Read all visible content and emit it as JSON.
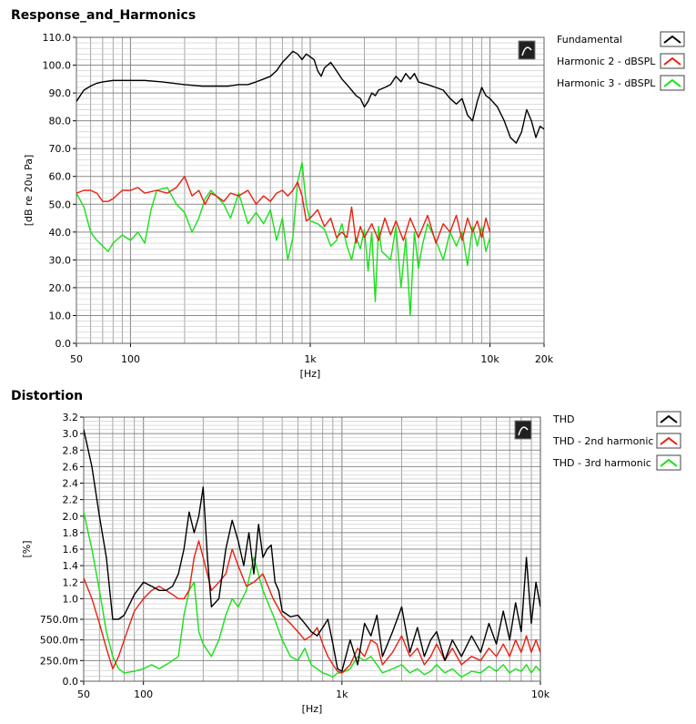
{
  "chart_data": [
    {
      "type": "line",
      "title": "Response_and_Harmonics",
      "xlabel": "[Hz]",
      "ylabel": "[dB re 20u Pa]",
      "xscale": "log",
      "xlim": [
        50,
        20000
      ],
      "ylim": [
        0,
        110
      ],
      "grid": true,
      "legend_position": "right",
      "xticks": [
        "50",
        "100",
        "1k",
        "10k",
        "20k"
      ],
      "yticks": [
        "0.0",
        "10.0",
        "20.0",
        "30.0",
        "40.0",
        "50.0",
        "60.0",
        "70.0",
        "80.0",
        "90.0",
        "100.0",
        "110.0"
      ],
      "series": [
        {
          "name": "Fundamental",
          "color": "#000000",
          "x": [
            50,
            55,
            60,
            65,
            70,
            80,
            90,
            100,
            120,
            150,
            200,
            250,
            300,
            350,
            400,
            450,
            500,
            550,
            600,
            650,
            700,
            750,
            800,
            850,
            900,
            950,
            1000,
            1050,
            1100,
            1150,
            1200,
            1300,
            1400,
            1500,
            1600,
            1700,
            1800,
            1900,
            2000,
            2100,
            2200,
            2300,
            2400,
            2600,
            2800,
            3000,
            3200,
            3400,
            3600,
            3800,
            4000,
            4500,
            5000,
            5500,
            6000,
            6500,
            7000,
            7500,
            8000,
            8500,
            9000,
            9500,
            10000,
            11000,
            12000,
            13000,
            14000,
            15000,
            16000,
            17000,
            18000,
            19000,
            20000
          ],
          "y": [
            87,
            91,
            92.5,
            93.5,
            94,
            94.5,
            94.5,
            94.5,
            94.5,
            94,
            93,
            92.5,
            92.5,
            92.5,
            93,
            93,
            94,
            95,
            96,
            98,
            101,
            103,
            105,
            104,
            102,
            104,
            103,
            102,
            98,
            96,
            99,
            101,
            98,
            95,
            93,
            91,
            89,
            88,
            85,
            87,
            90,
            89,
            91,
            92,
            93,
            96,
            94,
            97,
            95,
            97,
            94,
            93,
            92,
            91,
            88,
            86,
            88,
            82,
            80,
            87,
            92,
            89,
            88,
            85,
            80,
            74,
            72,
            76,
            84,
            80,
            74,
            78,
            77
          ]
        },
        {
          "name": "Harmonic 2 - dBSPL",
          "color": "#e82010",
          "x": [
            50,
            55,
            60,
            65,
            70,
            75,
            80,
            90,
            100,
            110,
            120,
            140,
            160,
            180,
            200,
            220,
            240,
            260,
            280,
            300,
            330,
            360,
            400,
            450,
            500,
            550,
            600,
            650,
            700,
            750,
            800,
            850,
            900,
            950,
            1000,
            1100,
            1200,
            1300,
            1400,
            1500,
            1600,
            1700,
            1800,
            1900,
            2000,
            2200,
            2400,
            2600,
            2800,
            3000,
            3300,
            3600,
            4000,
            4500,
            5000,
            5500,
            6000,
            6500,
            7000,
            7500,
            8000,
            8500,
            9000,
            9500,
            10000
          ],
          "y": [
            54,
            55,
            55,
            54,
            51,
            51,
            52,
            55,
            55,
            56,
            54,
            55,
            54,
            56,
            60,
            53,
            55,
            50,
            54,
            53,
            51,
            54,
            53,
            55,
            50,
            53,
            51,
            54,
            55,
            53,
            55,
            58,
            53,
            44,
            45,
            48,
            42,
            45,
            38,
            40,
            38,
            49,
            36,
            42,
            38,
            43,
            37,
            45,
            39,
            44,
            37,
            45,
            38,
            46,
            36,
            43,
            40,
            46,
            37,
            45,
            40,
            44,
            38,
            45,
            40
          ]
        },
        {
          "name": "Harmonic 3 - dBSPL",
          "color": "#18e018",
          "x": [
            50,
            55,
            60,
            65,
            70,
            75,
            80,
            90,
            100,
            110,
            120,
            130,
            140,
            160,
            180,
            200,
            220,
            240,
            260,
            280,
            300,
            330,
            360,
            400,
            450,
            500,
            550,
            600,
            650,
            700,
            750,
            800,
            850,
            900,
            950,
            1000,
            1100,
            1200,
            1300,
            1400,
            1500,
            1600,
            1700,
            1800,
            1900,
            2000,
            2100,
            2200,
            2300,
            2400,
            2500,
            2600,
            2800,
            3000,
            3200,
            3400,
            3600,
            3800,
            4000,
            4200,
            4500,
            5000,
            5500,
            6000,
            6500,
            7000,
            7500,
            8000,
            8500,
            9000,
            9500,
            10000
          ],
          "y": [
            54,
            49,
            40,
            37,
            35,
            33,
            36,
            39,
            37,
            40,
            36,
            48,
            55,
            56,
            50,
            47,
            40,
            45,
            52,
            55,
            53,
            50,
            45,
            54,
            43,
            47,
            43,
            48,
            37,
            45,
            30,
            38,
            58,
            65,
            50,
            44,
            43,
            41,
            35,
            37,
            43,
            35,
            30,
            38,
            34,
            41,
            26,
            40,
            15,
            42,
            33,
            32,
            30,
            42,
            20,
            38,
            10,
            40,
            27,
            35,
            43,
            37,
            30,
            40,
            35,
            40,
            28,
            42,
            35,
            42,
            33,
            38
          ]
        }
      ]
    },
    {
      "type": "line",
      "title": "Distortion",
      "xlabel": "[Hz]",
      "ylabel": "[%]",
      "xscale": "log",
      "xlim": [
        50,
        10000
      ],
      "ylim": [
        0,
        3.2
      ],
      "grid": true,
      "legend_position": "right",
      "xticks": [
        "50",
        "100",
        "1k",
        "10k"
      ],
      "yticks": [
        "0.0",
        "250.0m",
        "500.0m",
        "750.0m",
        "1.0",
        "1.2",
        "1.4",
        "1.6",
        "1.8",
        "2.0",
        "2.2",
        "2.4",
        "2.6",
        "2.8",
        "3.0",
        "3.2"
      ],
      "series": [
        {
          "name": "THD",
          "color": "#000000",
          "x": [
            50,
            55,
            60,
            65,
            70,
            75,
            80,
            90,
            100,
            110,
            120,
            130,
            140,
            150,
            160,
            170,
            180,
            190,
            200,
            210,
            220,
            240,
            260,
            280,
            300,
            320,
            340,
            360,
            380,
            400,
            420,
            440,
            460,
            480,
            500,
            550,
            600,
            650,
            700,
            750,
            800,
            850,
            900,
            950,
            1000,
            1100,
            1200,
            1300,
            1400,
            1500,
            1600,
            1800,
            2000,
            2200,
            2400,
            2600,
            2800,
            3000,
            3300,
            3600,
            4000,
            4500,
            5000,
            5500,
            6000,
            6500,
            7000,
            7500,
            8000,
            8500,
            9000,
            9500,
            10000
          ],
          "y": [
            3.05,
            2.6,
            2.0,
            1.5,
            0.75,
            0.75,
            0.8,
            1.05,
            1.2,
            1.15,
            1.1,
            1.1,
            1.15,
            1.3,
            1.6,
            2.05,
            1.8,
            2.0,
            2.35,
            1.5,
            0.9,
            1.0,
            1.6,
            1.95,
            1.7,
            1.4,
            1.8,
            1.3,
            1.9,
            1.5,
            1.6,
            1.65,
            1.2,
            1.1,
            0.85,
            0.78,
            0.8,
            0.7,
            0.6,
            0.55,
            0.65,
            0.75,
            0.45,
            0.15,
            0.12,
            0.5,
            0.2,
            0.7,
            0.55,
            0.8,
            0.3,
            0.6,
            0.9,
            0.35,
            0.65,
            0.3,
            0.5,
            0.6,
            0.25,
            0.5,
            0.3,
            0.55,
            0.35,
            0.7,
            0.45,
            0.85,
            0.5,
            0.95,
            0.6,
            1.5,
            0.7,
            1.2,
            0.9
          ]
        },
        {
          "name": "THD - 2nd harmonic",
          "color": "#e82010",
          "x": [
            50,
            55,
            60,
            65,
            70,
            75,
            80,
            90,
            100,
            110,
            120,
            130,
            140,
            150,
            160,
            170,
            180,
            190,
            200,
            220,
            240,
            260,
            280,
            300,
            330,
            360,
            400,
            450,
            500,
            550,
            600,
            650,
            700,
            750,
            800,
            850,
            900,
            950,
            1000,
            1100,
            1200,
            1300,
            1400,
            1500,
            1600,
            1800,
            2000,
            2200,
            2400,
            2600,
            2800,
            3000,
            3300,
            3600,
            4000,
            4500,
            5000,
            5500,
            6000,
            6500,
            7000,
            7500,
            8000,
            8500,
            9000,
            9500,
            10000
          ],
          "y": [
            1.25,
            1.0,
            0.7,
            0.4,
            0.15,
            0.3,
            0.5,
            0.85,
            1.0,
            1.1,
            1.15,
            1.1,
            1.05,
            1.0,
            1.0,
            1.1,
            1.5,
            1.7,
            1.5,
            1.1,
            1.2,
            1.3,
            1.6,
            1.4,
            1.15,
            1.2,
            1.3,
            1.0,
            0.8,
            0.7,
            0.6,
            0.5,
            0.55,
            0.65,
            0.45,
            0.3,
            0.2,
            0.12,
            0.1,
            0.2,
            0.4,
            0.3,
            0.5,
            0.45,
            0.2,
            0.35,
            0.55,
            0.3,
            0.4,
            0.2,
            0.3,
            0.45,
            0.25,
            0.4,
            0.2,
            0.3,
            0.25,
            0.4,
            0.3,
            0.45,
            0.3,
            0.5,
            0.35,
            0.55,
            0.35,
            0.5,
            0.35
          ]
        },
        {
          "name": "THD - 3rd harmonic",
          "color": "#18e018",
          "x": [
            50,
            55,
            60,
            65,
            70,
            75,
            80,
            90,
            100,
            110,
            120,
            130,
            140,
            150,
            160,
            170,
            180,
            190,
            200,
            220,
            240,
            260,
            280,
            300,
            330,
            360,
            400,
            450,
            500,
            550,
            600,
            650,
            700,
            750,
            800,
            850,
            900,
            950,
            1000,
            1100,
            1200,
            1300,
            1400,
            1500,
            1600,
            1800,
            2000,
            2200,
            2400,
            2600,
            2800,
            3000,
            3300,
            3600,
            4000,
            4500,
            5000,
            5500,
            6000,
            6500,
            7000,
            7500,
            8000,
            8500,
            9000,
            9500,
            10000
          ],
          "y": [
            2.05,
            1.6,
            1.1,
            0.6,
            0.3,
            0.15,
            0.1,
            0.12,
            0.15,
            0.2,
            0.15,
            0.2,
            0.25,
            0.3,
            0.8,
            1.1,
            1.2,
            0.6,
            0.45,
            0.3,
            0.5,
            0.8,
            1.0,
            0.9,
            1.1,
            1.5,
            1.1,
            0.8,
            0.5,
            0.3,
            0.25,
            0.4,
            0.2,
            0.15,
            0.1,
            0.08,
            0.05,
            0.1,
            0.1,
            0.15,
            0.3,
            0.25,
            0.3,
            0.2,
            0.1,
            0.15,
            0.2,
            0.1,
            0.15,
            0.08,
            0.12,
            0.2,
            0.1,
            0.15,
            0.05,
            0.12,
            0.1,
            0.18,
            0.12,
            0.2,
            0.1,
            0.15,
            0.12,
            0.2,
            0.1,
            0.18,
            0.12
          ]
        }
      ]
    }
  ]
}
